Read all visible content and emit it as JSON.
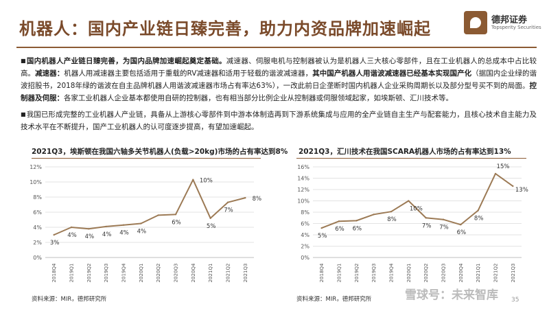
{
  "slide": {
    "title": "机器人：国内产业链日臻完善，助力内资品牌加速崛起",
    "logo_cn": "德邦证券",
    "logo_en": "Topsperity Securities",
    "accent_color": "#8b5a33"
  },
  "paragraphs": {
    "p1_bold_intro": "国内机器人产业链日臻完善，为国内品牌加速崛起奠定基础。",
    "p1_text1": "减速器、伺服电机与控制器被认为是机器人三大核心零部件，且在工业机器人的总成本中占比较高。",
    "p1_bold_reducer": "减速器：",
    "p1_text2": "机器人用减速器主要包括适用于重载的RV减速器和适用于轻载的谐波减速器，",
    "p1_bold_harmonic": "其中国产机器人用谐波减速器已经基本实现国产化",
    "p1_text3": "（据国内企业绿的谐波招股书，2018年绿的谐波在自主品牌机器人用谐波减速器市场占有率达63%），一改此前日企垄断时国内机器人企业采购周期长以及部分型号买不到的局面。",
    "p1_bold_control": "控制器及伺服：",
    "p1_text4": "各家工业机器人企业基本都使用自研的控制器，也有相当部分比例企业从控制器或伺服领域起家，如埃斯顿、汇川技术等。",
    "p2_text": "我国已形成完整的工业机器人产业链，具备从上游核心零部件到中游本体制造再到下游系统集成与应用的全产业链自主生产与配套能力，且核心技术自主能力及技术水平在不断提升，国产工业机器人的认可度逐步提高，有望加速崛起。"
  },
  "charts": {
    "left_title": "2021Q3，埃斯顿在我国六轴多关节机器人(负载>20kg)市场的占有率达到8%",
    "right_title": "2021Q3，汇川技术在我国SCARA机器人市场的占有率达到13%",
    "left_source": "资料来源：MIR，德邦研究所",
    "right_source": "资料来源：MIR，德邦研究所",
    "line_color": "#9c7a55"
  },
  "chart_data": [
    {
      "type": "line",
      "title": "2021Q3，埃斯顿在我国六轴多关节机器人(负载>20kg)市场的占有率达到8%",
      "categories": [
        "2018Q4",
        "2019Q1",
        "2019Q2",
        "2019Q3",
        "2019Q4",
        "2020Q1",
        "2020Q2",
        "2020Q3",
        "2020Q4",
        "2021Q1",
        "2021Q2",
        "2021Q3"
      ],
      "values": [
        3.0,
        4.0,
        3.8,
        4.1,
        4.3,
        4.5,
        5.6,
        5.7,
        10.3,
        5.2,
        7.3,
        7.9
      ],
      "data_labels": [
        "3%",
        "4%",
        "4%",
        "4%",
        "4%",
        "4%",
        "",
        "6%",
        "10%",
        "5%",
        "7%",
        "8%"
      ],
      "y_ticks": [
        "0%",
        "2%",
        "4%",
        "6%",
        "8%",
        "10%",
        "12%"
      ],
      "ylim": [
        0,
        12
      ],
      "xlabel": "",
      "ylabel": ""
    },
    {
      "type": "line",
      "title": "2021Q3，汇川技术在我国SCARA机器人市场的占有率达到13%",
      "categories": [
        "2018Q4",
        "2019Q1",
        "2019Q2",
        "2019Q3",
        "2019Q4",
        "2020Q1",
        "2020Q2",
        "2020Q3",
        "2020Q4",
        "2021Q1",
        "2021Q2",
        "2021Q3"
      ],
      "values": [
        5.2,
        6.4,
        6.5,
        7.6,
        8.1,
        10.0,
        7.0,
        6.7,
        5.8,
        8.3,
        14.8,
        12.6
      ],
      "data_labels": [
        "5%",
        "6%",
        "6%",
        "",
        "8%",
        "10%",
        "7%",
        "7%",
        "6%",
        "8%",
        "15%",
        "13%"
      ],
      "y_ticks": [
        "0%",
        "2%",
        "4%",
        "6%",
        "8%",
        "10%",
        "12%",
        "14%",
        "16%"
      ],
      "ylim": [
        0,
        16
      ],
      "xlabel": "",
      "ylabel": ""
    }
  ],
  "watermark": "雪球号：未来智库",
  "page_number": "35"
}
